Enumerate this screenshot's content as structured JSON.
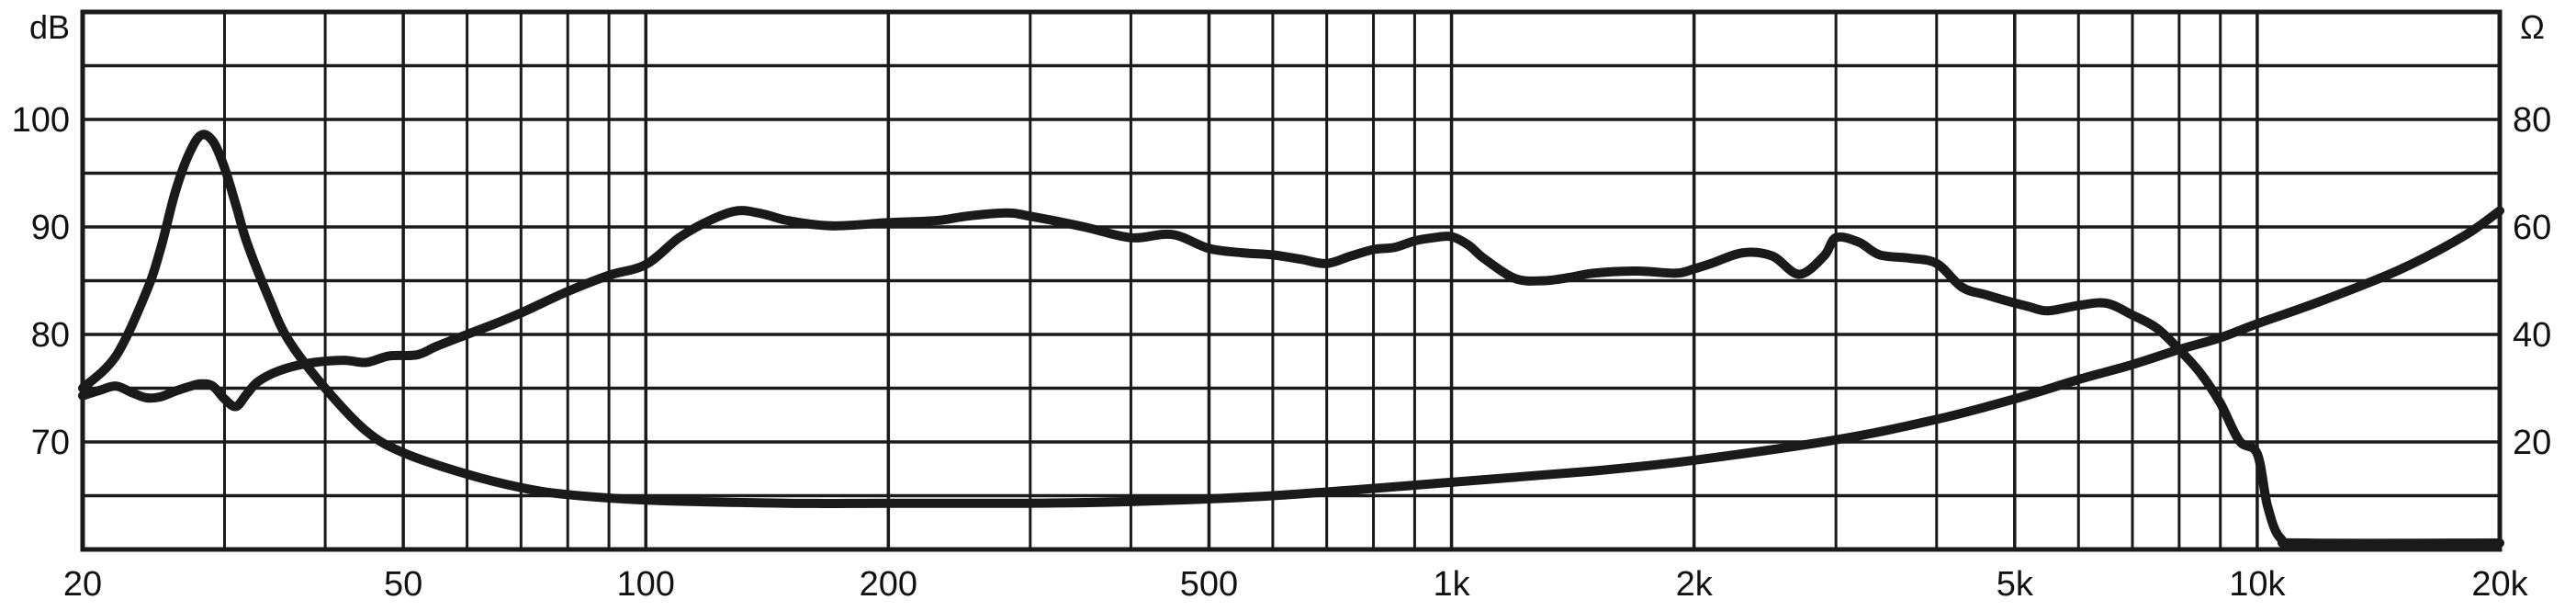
{
  "chart_data": {
    "type": "line",
    "title": "",
    "x_scale": "log",
    "xlim": [
      20,
      20000
    ],
    "x_tick_labels": [
      {
        "value": 20,
        "label": "20"
      },
      {
        "value": 50,
        "label": "50"
      },
      {
        "value": 100,
        "label": "100"
      },
      {
        "value": 200,
        "label": "200"
      },
      {
        "value": 500,
        "label": "500"
      },
      {
        "value": 1000,
        "label": "1k"
      },
      {
        "value": 2000,
        "label": "2k"
      },
      {
        "value": 5000,
        "label": "5k"
      },
      {
        "value": 10000,
        "label": "10k"
      },
      {
        "value": 20000,
        "label": "20k"
      }
    ],
    "x_minor_gridlines": [
      30,
      40,
      60,
      70,
      80,
      90,
      300,
      400,
      600,
      700,
      800,
      900,
      3000,
      4000,
      6000,
      7000,
      8000,
      9000
    ],
    "y_left": {
      "unit_label": "dB",
      "ylim": [
        60,
        110
      ],
      "ticks": [
        70,
        80,
        90,
        100
      ],
      "tick_labels": [
        "70",
        "80",
        "90",
        "100"
      ]
    },
    "y_right": {
      "unit_label": "Ω",
      "ylim": [
        0,
        100
      ],
      "ticks": [
        20,
        40,
        60,
        80
      ],
      "tick_labels": [
        "20",
        "40",
        "60",
        "80"
      ]
    },
    "grid": true,
    "horizontal_gridlines_db": [
      65,
      70,
      75,
      80,
      85,
      90,
      95,
      100,
      105
    ],
    "legend": "none",
    "series": [
      {
        "axis": "left",
        "color": "#1a1a1a",
        "points": [
          [
            20,
            74.3
          ],
          [
            21,
            74.8
          ],
          [
            22,
            75.2
          ],
          [
            23,
            74.6
          ],
          [
            24,
            74.1
          ],
          [
            25,
            74.2
          ],
          [
            26,
            74.7
          ],
          [
            27,
            75.1
          ],
          [
            28,
            75.4
          ],
          [
            29,
            75.2
          ],
          [
            30,
            74.0
          ],
          [
            31,
            73.3
          ],
          [
            32,
            74.5
          ],
          [
            33,
            75.6
          ],
          [
            35,
            76.6
          ],
          [
            38,
            77.3
          ],
          [
            42,
            77.6
          ],
          [
            45,
            77.4
          ],
          [
            48,
            78.0
          ],
          [
            52,
            78.1
          ],
          [
            55,
            78.9
          ],
          [
            60,
            80.0
          ],
          [
            65,
            81.0
          ],
          [
            70,
            82.0
          ],
          [
            80,
            84.0
          ],
          [
            90,
            85.5
          ],
          [
            100,
            86.5
          ],
          [
            110,
            89.0
          ],
          [
            120,
            90.6
          ],
          [
            130,
            91.5
          ],
          [
            140,
            91.2
          ],
          [
            150,
            90.6
          ],
          [
            170,
            90.1
          ],
          [
            200,
            90.4
          ],
          [
            230,
            90.6
          ],
          [
            250,
            91.0
          ],
          [
            280,
            91.3
          ],
          [
            300,
            91.0
          ],
          [
            350,
            90.0
          ],
          [
            400,
            89.0
          ],
          [
            450,
            89.3
          ],
          [
            500,
            88.0
          ],
          [
            550,
            87.6
          ],
          [
            600,
            87.4
          ],
          [
            650,
            87.0
          ],
          [
            700,
            86.6
          ],
          [
            750,
            87.3
          ],
          [
            800,
            87.9
          ],
          [
            850,
            88.1
          ],
          [
            900,
            88.7
          ],
          [
            950,
            89.0
          ],
          [
            1000,
            89.1
          ],
          [
            1050,
            88.3
          ],
          [
            1100,
            87.0
          ],
          [
            1200,
            85.2
          ],
          [
            1300,
            85.0
          ],
          [
            1400,
            85.3
          ],
          [
            1500,
            85.7
          ],
          [
            1700,
            85.9
          ],
          [
            1900,
            85.7
          ],
          [
            2000,
            86.1
          ],
          [
            2100,
            86.6
          ],
          [
            2300,
            87.6
          ],
          [
            2500,
            87.3
          ],
          [
            2700,
            85.6
          ],
          [
            2900,
            87.3
          ],
          [
            3000,
            89.0
          ],
          [
            3200,
            88.6
          ],
          [
            3400,
            87.4
          ],
          [
            3700,
            87.1
          ],
          [
            4000,
            86.6
          ],
          [
            4300,
            84.4
          ],
          [
            4600,
            83.7
          ],
          [
            4900,
            83.1
          ],
          [
            5200,
            82.6
          ],
          [
            5500,
            82.2
          ],
          [
            6000,
            82.7
          ],
          [
            6500,
            82.9
          ],
          [
            7000,
            81.8
          ],
          [
            7500,
            80.6
          ],
          [
            8000,
            78.6
          ],
          [
            8500,
            76.4
          ],
          [
            9000,
            73.6
          ],
          [
            9500,
            70.1
          ],
          [
            10000,
            68.9
          ],
          [
            10300,
            64.0
          ],
          [
            10700,
            61.0
          ],
          [
            11500,
            60.6
          ],
          [
            20000,
            60.6
          ]
        ]
      },
      {
        "axis": "right",
        "color": "#1a1a1a",
        "points": [
          [
            20,
            30
          ],
          [
            22,
            36
          ],
          [
            24,
            48
          ],
          [
            25,
            56
          ],
          [
            26,
            66
          ],
          [
            27,
            73
          ],
          [
            28,
            77
          ],
          [
            29,
            76
          ],
          [
            30,
            71
          ],
          [
            31,
            64
          ],
          [
            32,
            57
          ],
          [
            34,
            47
          ],
          [
            36,
            39
          ],
          [
            40,
            30
          ],
          [
            45,
            22
          ],
          [
            50,
            18
          ],
          [
            60,
            14
          ],
          [
            70,
            11.5
          ],
          [
            80,
            10.2
          ],
          [
            100,
            9.2
          ],
          [
            150,
            8.6
          ],
          [
            200,
            8.6
          ],
          [
            300,
            8.6
          ],
          [
            400,
            8.9
          ],
          [
            600,
            10
          ],
          [
            1000,
            12.5
          ],
          [
            1500,
            14.6
          ],
          [
            2000,
            16.6
          ],
          [
            3000,
            20.4
          ],
          [
            4000,
            24.2
          ],
          [
            5000,
            28
          ],
          [
            6000,
            31.6
          ],
          [
            7000,
            34.4
          ],
          [
            8000,
            37.2
          ],
          [
            9000,
            39.4
          ],
          [
            10000,
            42
          ],
          [
            12000,
            46.2
          ],
          [
            15000,
            52
          ],
          [
            18000,
            58.2
          ],
          [
            20000,
            63
          ]
        ]
      }
    ]
  }
}
